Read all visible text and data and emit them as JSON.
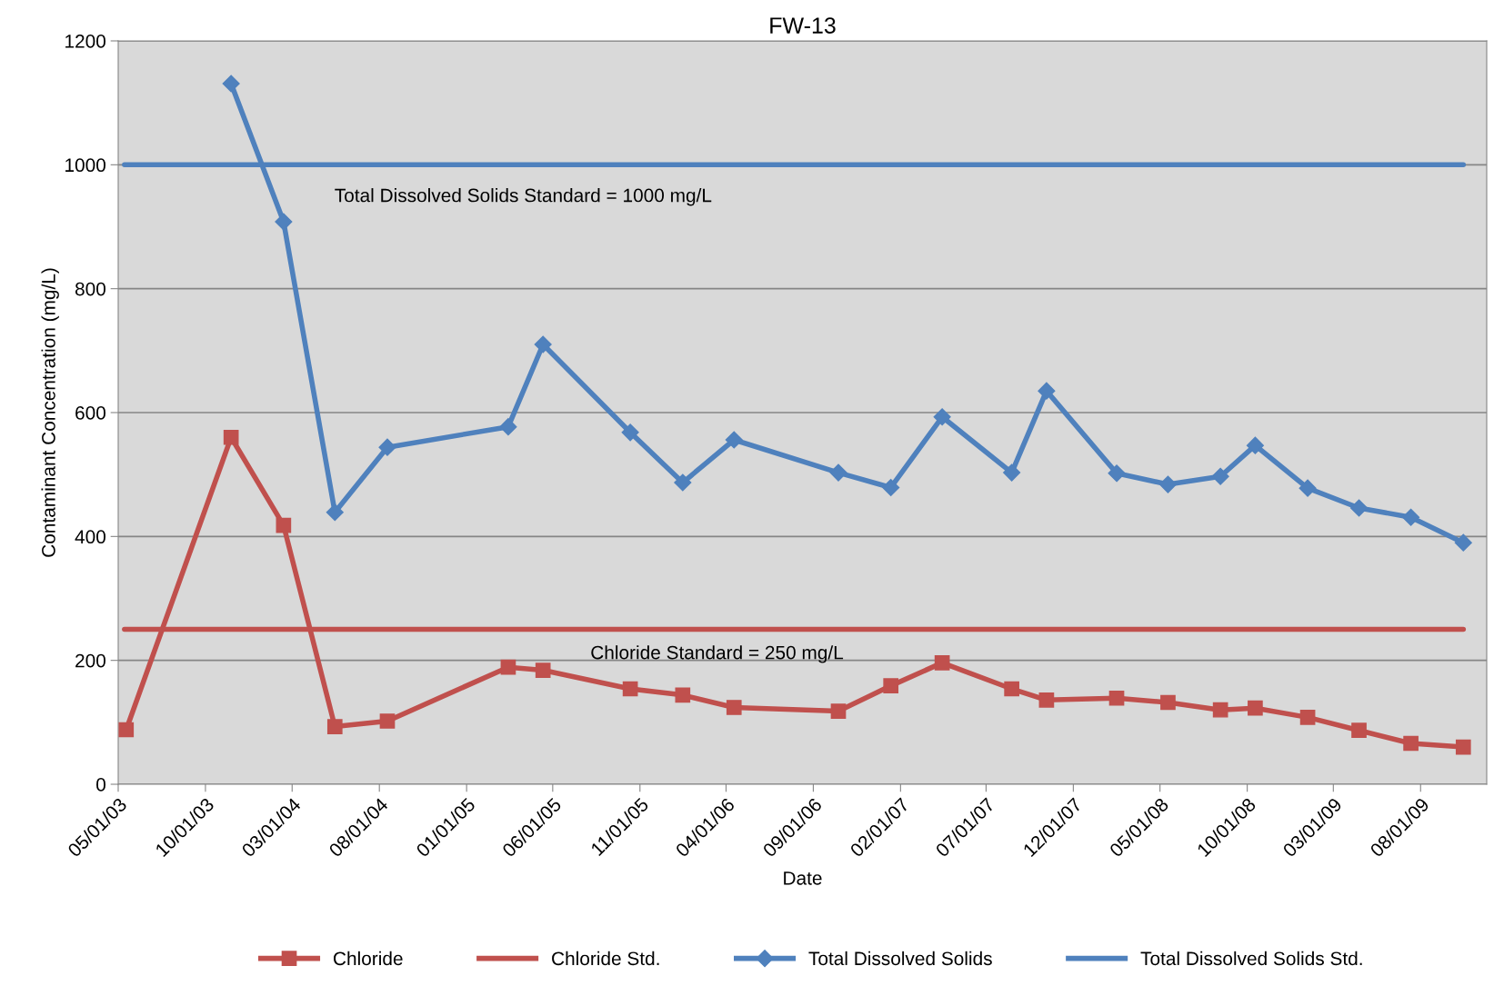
{
  "chart_data": {
    "type": "line",
    "title": "FW-13",
    "xlabel": "Date",
    "ylabel": "Contaminant Concentration (mg/L)",
    "xlim": [
      "2003-05-01",
      "2009-11-25"
    ],
    "xticks": [
      {
        "value": "2003-05-01",
        "label": "05/01/03"
      },
      {
        "value": "2003-10-01",
        "label": "10/01/03"
      },
      {
        "value": "2004-03-01",
        "label": "03/01/04"
      },
      {
        "value": "2004-08-01",
        "label": "08/01/04"
      },
      {
        "value": "2005-01-01",
        "label": "01/01/05"
      },
      {
        "value": "2005-06-01",
        "label": "06/01/05"
      },
      {
        "value": "2005-11-01",
        "label": "11/01/05"
      },
      {
        "value": "2006-04-01",
        "label": "04/01/06"
      },
      {
        "value": "2006-09-01",
        "label": "09/01/06"
      },
      {
        "value": "2007-02-01",
        "label": "02/01/07"
      },
      {
        "value": "2007-07-01",
        "label": "07/01/07"
      },
      {
        "value": "2007-12-01",
        "label": "12/01/07"
      },
      {
        "value": "2008-05-01",
        "label": "05/01/08"
      },
      {
        "value": "2008-10-01",
        "label": "10/01/08"
      },
      {
        "value": "2009-03-01",
        "label": "03/01/09"
      },
      {
        "value": "2009-08-01",
        "label": "08/01/09"
      }
    ],
    "ylim": [
      0,
      1200
    ],
    "yticks": [
      0,
      200,
      400,
      600,
      800,
      1000,
      1200
    ],
    "grid": "y",
    "legend": "bottom",
    "line_style": "solid",
    "series": [
      {
        "name": "Chloride",
        "color": "#c0504d",
        "marker": "square",
        "x": [
          "2003-05-15",
          "2003-11-15",
          "2004-02-15",
          "2004-05-15",
          "2004-08-15",
          "2005-03-15",
          "2005-05-15",
          "2005-10-15",
          "2006-01-15",
          "2006-04-15",
          "2006-10-15",
          "2007-01-15",
          "2007-04-15",
          "2007-08-15",
          "2007-10-15",
          "2008-02-15",
          "2008-05-15",
          "2008-08-15",
          "2008-10-15",
          "2009-01-15",
          "2009-04-15",
          "2009-07-15",
          "2009-10-15"
        ],
        "values": [
          88,
          560,
          418,
          93,
          102,
          189,
          184,
          154,
          144,
          124,
          118,
          159,
          196,
          154,
          136,
          139,
          132,
          120,
          123,
          108,
          87,
          66,
          60
        ]
      },
      {
        "name": "Chloride Std.",
        "color": "#c0504d",
        "marker": "none",
        "x": [
          "2003-05-12",
          "2009-10-15"
        ],
        "values": [
          250,
          250
        ]
      },
      {
        "name": "Total Dissolved Solids",
        "color": "#4f81bd",
        "marker": "diamond",
        "x": [
          "2003-11-15",
          "2004-02-15",
          "2004-05-15",
          "2004-08-15",
          "2005-03-15",
          "2005-05-15",
          "2005-10-15",
          "2006-01-15",
          "2006-04-15",
          "2006-10-15",
          "2007-01-15",
          "2007-04-15",
          "2007-08-15",
          "2007-10-15",
          "2008-02-15",
          "2008-05-15",
          "2008-08-15",
          "2008-10-15",
          "2009-01-15",
          "2009-04-15",
          "2009-07-15",
          "2009-10-15"
        ],
        "values": [
          1131,
          908,
          439,
          544,
          577,
          710,
          568,
          487,
          556,
          503,
          479,
          593,
          503,
          635,
          502,
          484,
          497,
          547,
          478,
          446,
          431,
          390
        ]
      },
      {
        "name": "Total Dissolved Solids Std.",
        "color": "#4f81bd",
        "marker": "none",
        "x": [
          "2003-05-12",
          "2009-10-15"
        ],
        "values": [
          1000,
          1000
        ]
      }
    ],
    "annotations": [
      "Total Dissolved Solids Standard = 1000 mg/L",
      "Chloride Standard = 250 mg/L"
    ]
  }
}
